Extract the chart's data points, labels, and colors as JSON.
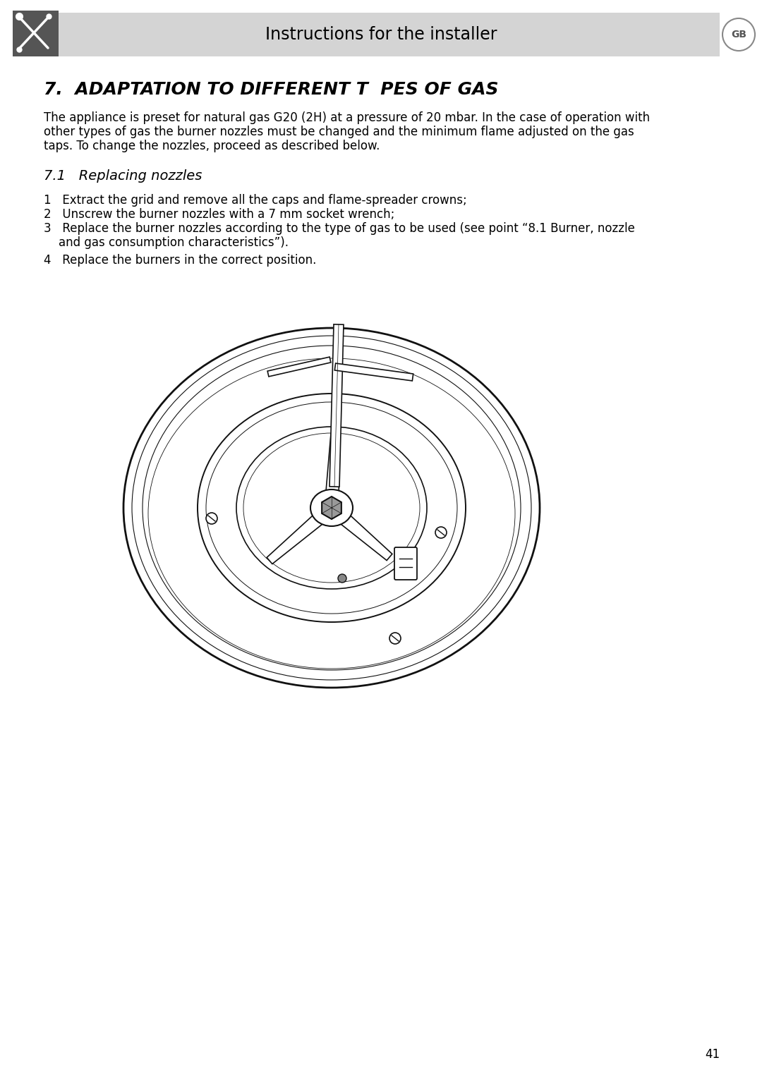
{
  "page_bg": "#ffffff",
  "header_bg": "#d4d4d4",
  "header_icon_bg": "#555555",
  "header_text": "Instructions for the installer",
  "gb_badge_text": "GB",
  "section_title": "7.  ADAPTATION TO DIFFERENT T  PES OF GAS",
  "body_text_line1": "The appliance is preset for natural gas G20 (2H) at a pressure of 20 mbar. In the case of operation with",
  "body_text_line2": "other types of gas the burner nozzles must be changed and the minimum flame adjusted on the gas",
  "body_text_line3": "taps. To change the nozzles, proceed as described below.",
  "subsection_title": "7.1   Replacing nozzles",
  "step1": "1   Extract the grid and remove all the caps and flame-spreader crowns;",
  "step2": "2   Unscrew the burner nozzles with a 7 mm socket wrench;",
  "step3_line1": "3   Replace the burner nozzles according to the type of gas to be used (see point “8.1 Burner, nozzle",
  "step3_line2": "    and gas consumption characteristics”).",
  "step4": "4   Replace the burners in the correct position.",
  "page_number": "41",
  "dc": "#111111"
}
